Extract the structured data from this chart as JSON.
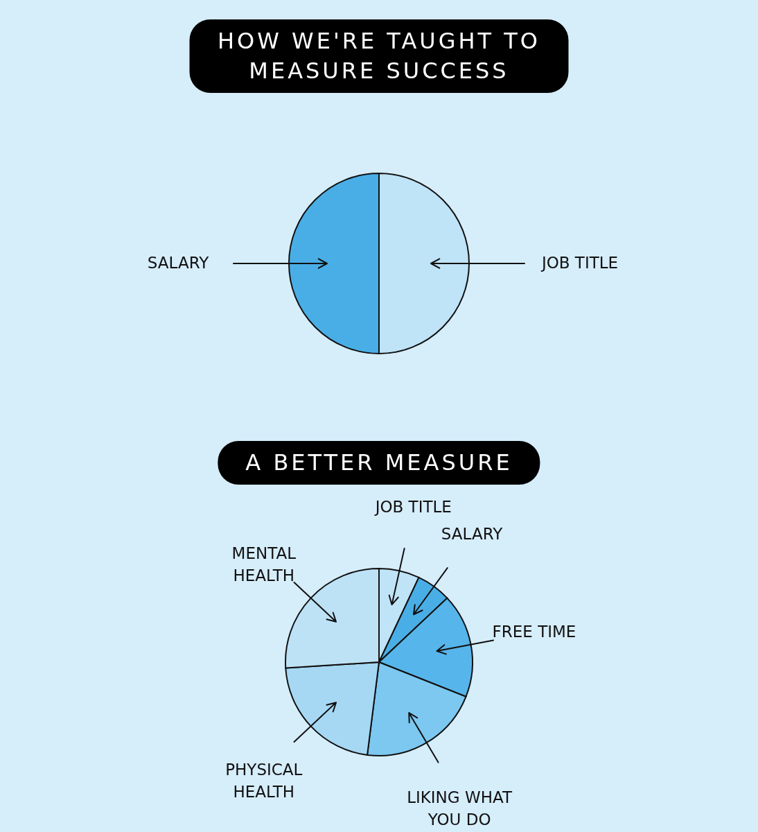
{
  "chart_data": [
    {
      "type": "pie",
      "title": "HOW WE'RE TAUGHT TO MEASURE SUCCESS",
      "categories": [
        "JOB TITLE",
        "SALARY"
      ],
      "values": [
        50,
        50
      ],
      "colors": [
        "#bfe3f7",
        "#4aaee6"
      ]
    },
    {
      "type": "pie",
      "title": "A BETTER MEASURE",
      "categories": [
        "JOB TITLE",
        "SALARY",
        "FREE TIME",
        "LIKING WHAT\nYOU DO",
        "PHYSICAL\nHEALTH",
        "MENTAL\nHEALTH"
      ],
      "values": [
        7,
        6,
        18,
        21,
        22,
        26
      ],
      "colors": [
        "#bfe3f7",
        "#4aaee6",
        "#56b5ea",
        "#7cc8f0",
        "#a6d8f4",
        "#bde2f6"
      ]
    }
  ]
}
